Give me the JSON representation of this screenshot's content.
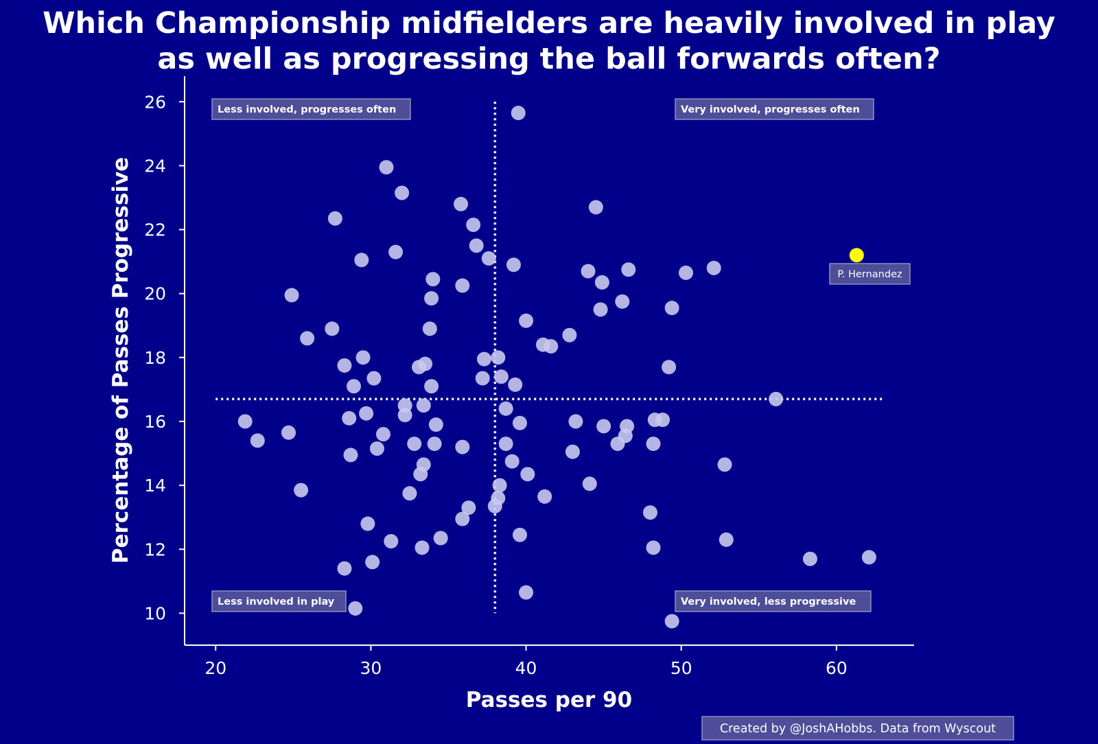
{
  "colors": {
    "background": "#00008b",
    "point": "#c9c9ee",
    "highlight": "#ffff00",
    "text": "#ffffff",
    "label_box": "#4d4d99"
  },
  "footer": {
    "credit": "Created by @JoshAHobbs. Data from Wyscout"
  },
  "chart_data": {
    "type": "scatter",
    "title": "Which Championship midfielders are heavily involved in play as well as progressing the ball forwards often?",
    "title_lines": [
      "Which Championship midfielders are heavily involved in play",
      "as well as progressing the ball forwards often?"
    ],
    "xlabel": "Passes per 90",
    "ylabel": "Percentage of Passes Progressive",
    "xlim": [
      18,
      65
    ],
    "ylim": [
      9,
      26.8
    ],
    "xticks": [
      "20",
      "30",
      "40",
      "50",
      "60"
    ],
    "yticks": [
      "10",
      "12",
      "14",
      "16",
      "18",
      "20",
      "22",
      "24",
      "26"
    ],
    "grid": false,
    "reference_lines": {
      "x_mean": 38.0,
      "y_mean": 16.7
    },
    "quadrant_labels": {
      "top_left": "Less involved, progresses often",
      "top_right": "Very involved, progresses often",
      "bottom_left": "Less involved in play",
      "bottom_right": "Very involved, less progressive"
    },
    "highlight": {
      "name": "P. Hernandez",
      "x": 61.3,
      "y": 21.2
    },
    "points": [
      [
        39.5,
        25.65
      ],
      [
        31.0,
        23.95
      ],
      [
        32.0,
        23.15
      ],
      [
        35.8,
        22.8
      ],
      [
        44.5,
        22.7
      ],
      [
        27.7,
        22.35
      ],
      [
        36.6,
        22.15
      ],
      [
        36.8,
        21.5
      ],
      [
        31.6,
        21.3
      ],
      [
        37.6,
        21.1
      ],
      [
        29.4,
        21.05
      ],
      [
        39.2,
        20.9
      ],
      [
        52.1,
        20.8
      ],
      [
        46.6,
        20.75
      ],
      [
        44.0,
        20.7
      ],
      [
        50.3,
        20.65
      ],
      [
        34.0,
        20.45
      ],
      [
        44.9,
        20.35
      ],
      [
        35.9,
        20.25
      ],
      [
        24.9,
        19.95
      ],
      [
        33.9,
        19.85
      ],
      [
        46.2,
        19.75
      ],
      [
        44.8,
        19.5
      ],
      [
        49.4,
        19.55
      ],
      [
        40.0,
        19.15
      ],
      [
        27.5,
        18.9
      ],
      [
        33.8,
        18.9
      ],
      [
        42.8,
        18.7
      ],
      [
        25.9,
        18.6
      ],
      [
        41.1,
        18.4
      ],
      [
        41.6,
        18.35
      ],
      [
        29.5,
        18.0
      ],
      [
        38.2,
        18.0
      ],
      [
        37.3,
        17.95
      ],
      [
        28.3,
        17.75
      ],
      [
        33.5,
        17.8
      ],
      [
        33.1,
        17.7
      ],
      [
        49.2,
        17.7
      ],
      [
        30.2,
        17.35
      ],
      [
        37.2,
        17.35
      ],
      [
        38.4,
        17.4
      ],
      [
        39.3,
        17.15
      ],
      [
        28.9,
        17.1
      ],
      [
        33.9,
        17.1
      ],
      [
        56.1,
        16.7
      ],
      [
        32.2,
        16.5
      ],
      [
        33.4,
        16.5
      ],
      [
        38.7,
        16.4
      ],
      [
        29.7,
        16.25
      ],
      [
        32.2,
        16.2
      ],
      [
        28.6,
        16.1
      ],
      [
        21.9,
        16.0
      ],
      [
        43.2,
        16.0
      ],
      [
        48.3,
        16.05
      ],
      [
        48.8,
        16.05
      ],
      [
        39.6,
        15.95
      ],
      [
        34.2,
        15.9
      ],
      [
        45.0,
        15.85
      ],
      [
        46.5,
        15.85
      ],
      [
        24.7,
        15.65
      ],
      [
        30.8,
        15.6
      ],
      [
        46.4,
        15.55
      ],
      [
        22.7,
        15.4
      ],
      [
        32.8,
        15.3
      ],
      [
        34.1,
        15.3
      ],
      [
        38.7,
        15.3
      ],
      [
        45.9,
        15.3
      ],
      [
        48.2,
        15.3
      ],
      [
        35.9,
        15.2
      ],
      [
        30.4,
        15.15
      ],
      [
        43.0,
        15.05
      ],
      [
        28.7,
        14.95
      ],
      [
        39.1,
        14.75
      ],
      [
        33.4,
        14.65
      ],
      [
        52.8,
        14.65
      ],
      [
        33.2,
        14.35
      ],
      [
        40.1,
        14.35
      ],
      [
        44.1,
        14.05
      ],
      [
        38.3,
        14.0
      ],
      [
        25.5,
        13.85
      ],
      [
        32.5,
        13.75
      ],
      [
        41.2,
        13.65
      ],
      [
        38.2,
        13.6
      ],
      [
        38.0,
        13.35
      ],
      [
        36.3,
        13.3
      ],
      [
        48.0,
        13.15
      ],
      [
        35.9,
        12.95
      ],
      [
        29.8,
        12.8
      ],
      [
        39.6,
        12.45
      ],
      [
        34.5,
        12.35
      ],
      [
        52.9,
        12.3
      ],
      [
        31.3,
        12.25
      ],
      [
        33.3,
        12.05
      ],
      [
        48.2,
        12.05
      ],
      [
        62.1,
        11.75
      ],
      [
        58.3,
        11.7
      ],
      [
        30.1,
        11.6
      ],
      [
        28.3,
        11.4
      ],
      [
        40.0,
        10.65
      ],
      [
        29.0,
        10.15
      ],
      [
        49.4,
        9.75
      ]
    ]
  }
}
